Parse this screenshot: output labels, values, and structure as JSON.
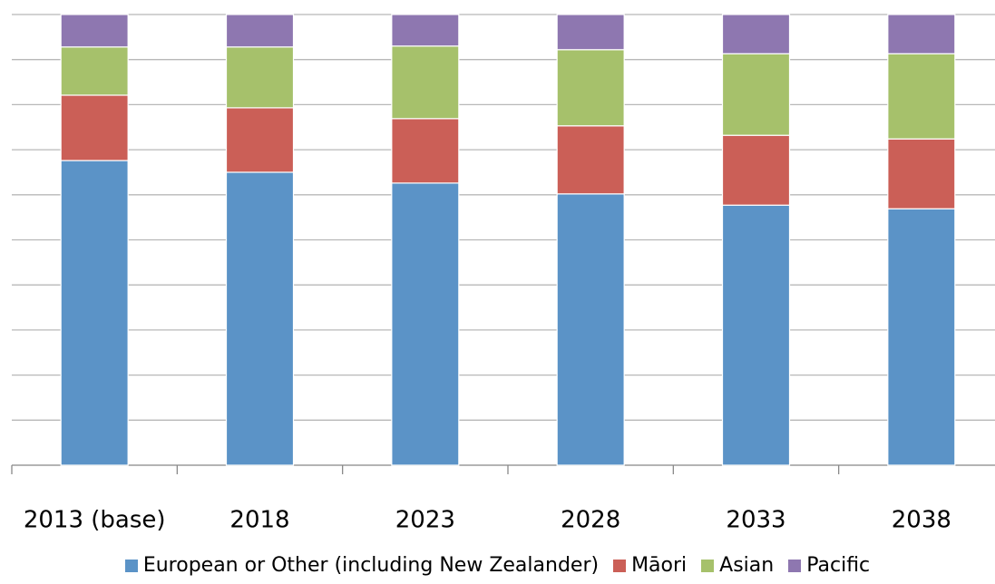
{
  "chart_data": {
    "type": "stacked-bar",
    "categories": [
      "2013 (base)",
      "2018",
      "2023",
      "2028",
      "2033",
      "2038"
    ],
    "series": [
      {
        "name": "European or Other (including New Zealander)",
        "color": "#5b93c7",
        "values": [
          67.6,
          65.0,
          62.6,
          60.2,
          57.7,
          56.9
        ]
      },
      {
        "name": "Māori",
        "color": "#cb5f57",
        "values": [
          14.5,
          14.3,
          14.3,
          15.1,
          15.5,
          15.5
        ]
      },
      {
        "name": "Asian",
        "color": "#a6c16b",
        "values": [
          10.7,
          13.5,
          16.1,
          16.9,
          18.1,
          18.9
        ]
      },
      {
        "name": "Pacific",
        "color": "#8e77b0",
        "values": [
          7.2,
          7.2,
          7.0,
          7.8,
          8.7,
          8.7
        ]
      }
    ],
    "ylim": [
      0,
      100
    ],
    "yticks": [
      0,
      10,
      20,
      30,
      40,
      50,
      60,
      70,
      80,
      90,
      100
    ],
    "grid": true
  }
}
